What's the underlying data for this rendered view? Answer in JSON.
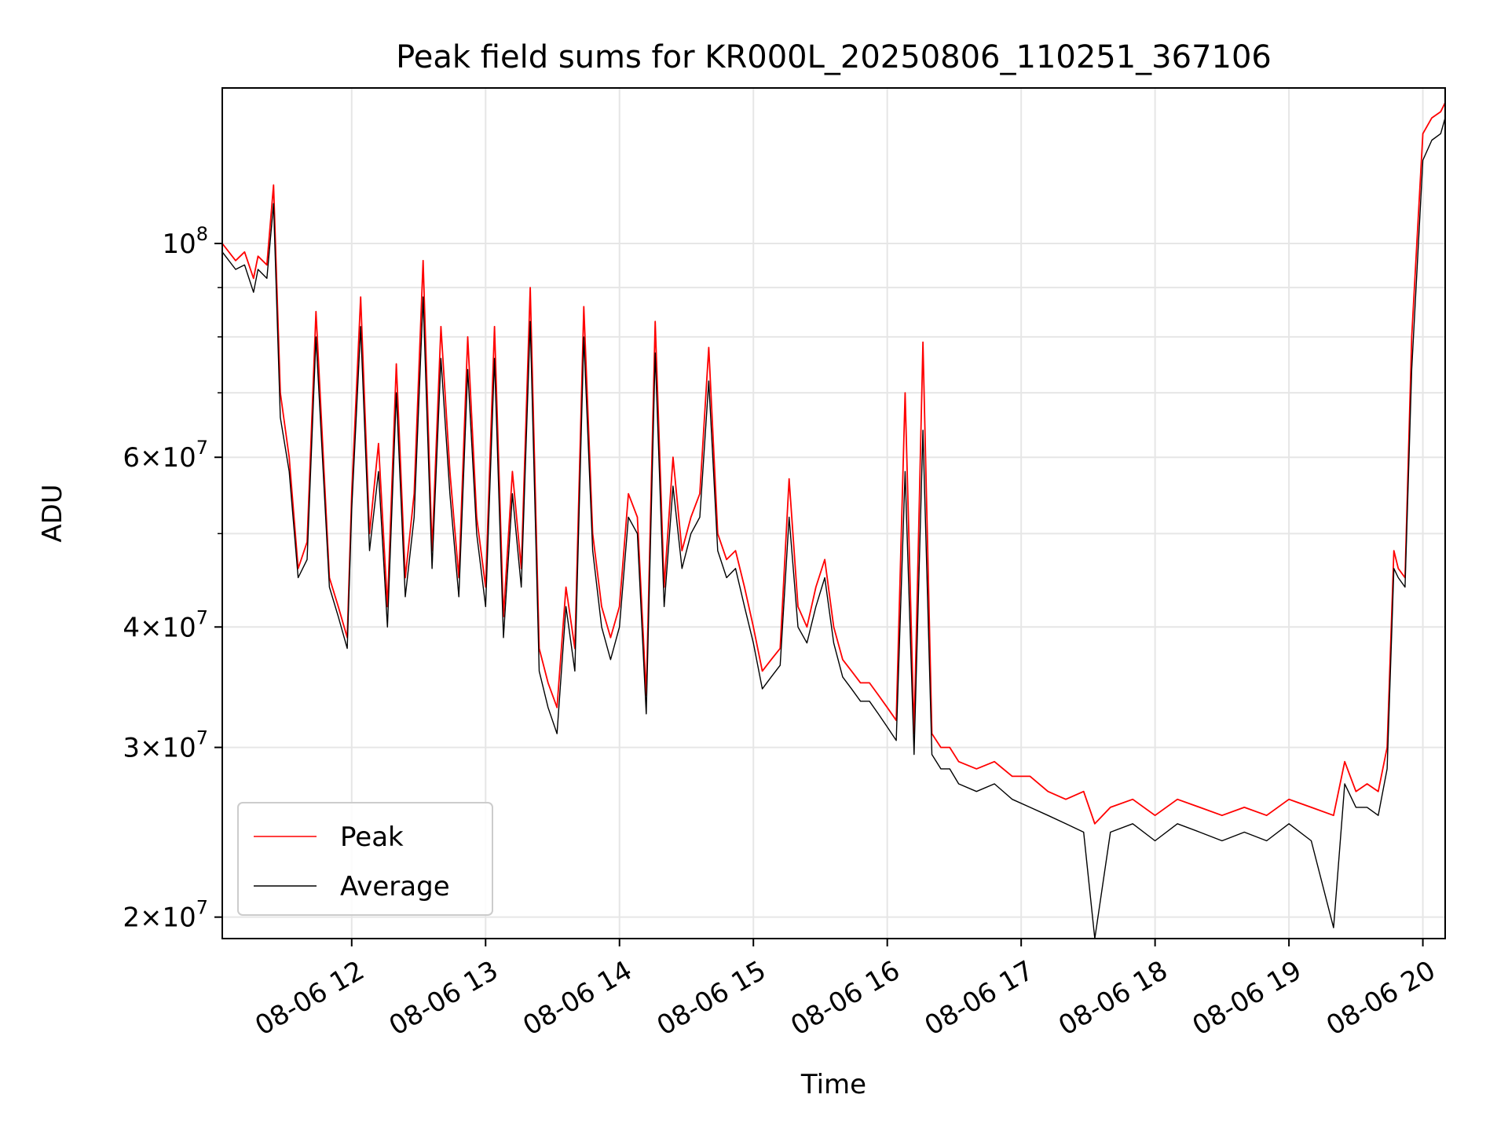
{
  "chart_data": {
    "type": "line",
    "title": "Peak field sums for KR000L_20250806_110251_367106",
    "xlabel": "Time",
    "ylabel": "ADU",
    "y_scale": "log",
    "ylim": [
      19000000,
      145000000
    ],
    "xlim": [
      "08-06 11:02",
      "08-06 20:10"
    ],
    "grid": true,
    "legend_position": "lower-left",
    "x_ticks": [
      "08-06 12",
      "08-06 13",
      "08-06 14",
      "08-06 15",
      "08-06 16",
      "08-06 17",
      "08-06 18",
      "08-06 19",
      "08-06 20"
    ],
    "y_major_ticks": [
      {
        "value": 20000000,
        "mant": "2",
        "exp": "7"
      },
      {
        "value": 30000000,
        "mant": "3",
        "exp": "7"
      },
      {
        "value": 40000000,
        "mant": "4",
        "exp": "7"
      },
      {
        "value": 60000000,
        "mant": "6",
        "exp": "7"
      },
      {
        "value": 100000000,
        "mant": "",
        "exp": "8"
      }
    ],
    "series": [
      {
        "name": "Peak",
        "color": "#ff0000",
        "x": [
          "08-06 11:02",
          "08-06 11:08",
          "08-06 11:12",
          "08-06 11:16",
          "08-06 11:18",
          "08-06 11:22",
          "08-06 11:25",
          "08-06 11:28",
          "08-06 11:32",
          "08-06 11:36",
          "08-06 11:40",
          "08-06 11:44",
          "08-06 11:50",
          "08-06 11:54",
          "08-06 11:58",
          "08-06 12:00",
          "08-06 12:04",
          "08-06 12:08",
          "08-06 12:12",
          "08-06 12:16",
          "08-06 12:20",
          "08-06 12:24",
          "08-06 12:28",
          "08-06 12:32",
          "08-06 12:36",
          "08-06 12:40",
          "08-06 12:44",
          "08-06 12:48",
          "08-06 12:52",
          "08-06 12:56",
          "08-06 13:00",
          "08-06 13:04",
          "08-06 13:08",
          "08-06 13:12",
          "08-06 13:16",
          "08-06 13:20",
          "08-06 13:24",
          "08-06 13:28",
          "08-06 13:32",
          "08-06 13:36",
          "08-06 13:40",
          "08-06 13:44",
          "08-06 13:48",
          "08-06 13:52",
          "08-06 13:56",
          "08-06 14:00",
          "08-06 14:04",
          "08-06 14:08",
          "08-06 14:12",
          "08-06 14:16",
          "08-06 14:20",
          "08-06 14:24",
          "08-06 14:28",
          "08-06 14:32",
          "08-06 14:36",
          "08-06 14:40",
          "08-06 14:44",
          "08-06 14:48",
          "08-06 14:52",
          "08-06 14:56",
          "08-06 15:00",
          "08-06 15:04",
          "08-06 15:08",
          "08-06 15:12",
          "08-06 15:16",
          "08-06 15:20",
          "08-06 15:24",
          "08-06 15:28",
          "08-06 15:32",
          "08-06 15:36",
          "08-06 15:40",
          "08-06 15:44",
          "08-06 15:48",
          "08-06 15:52",
          "08-06 15:56",
          "08-06 16:00",
          "08-06 16:04",
          "08-06 16:08",
          "08-06 16:12",
          "08-06 16:16",
          "08-06 16:20",
          "08-06 16:24",
          "08-06 16:28",
          "08-06 16:32",
          "08-06 16:40",
          "08-06 16:48",
          "08-06 16:56",
          "08-06 17:04",
          "08-06 17:12",
          "08-06 17:20",
          "08-06 17:28",
          "08-06 17:33",
          "08-06 17:40",
          "08-06 17:50",
          "08-06 18:00",
          "08-06 18:10",
          "08-06 18:20",
          "08-06 18:30",
          "08-06 18:40",
          "08-06 18:50",
          "08-06 19:00",
          "08-06 19:10",
          "08-06 19:20",
          "08-06 19:25",
          "08-06 19:30",
          "08-06 19:35",
          "08-06 19:40",
          "08-06 19:44",
          "08-06 19:47",
          "08-06 19:49",
          "08-06 19:52",
          "08-06 19:55",
          "08-06 20:00",
          "08-06 20:04",
          "08-06 20:08",
          "08-06 20:10"
        ],
        "y": [
          100000000,
          96000000,
          98000000,
          92000000,
          97000000,
          95000000,
          115000000,
          70000000,
          60000000,
          46000000,
          49000000,
          85000000,
          45000000,
          42000000,
          39000000,
          55000000,
          88000000,
          50000000,
          62000000,
          42000000,
          75000000,
          45000000,
          55000000,
          96000000,
          48000000,
          82000000,
          58000000,
          45000000,
          80000000,
          52000000,
          44000000,
          82000000,
          41000000,
          58000000,
          46000000,
          90000000,
          38000000,
          35000000,
          33000000,
          44000000,
          38000000,
          86000000,
          50000000,
          42000000,
          39000000,
          42000000,
          55000000,
          52000000,
          34000000,
          83000000,
          44000000,
          60000000,
          48000000,
          52000000,
          55000000,
          78000000,
          50000000,
          47000000,
          48000000,
          44000000,
          40000000,
          36000000,
          37000000,
          38000000,
          57000000,
          42000000,
          40000000,
          44000000,
          47000000,
          40000000,
          37000000,
          36000000,
          35000000,
          35000000,
          34000000,
          33000000,
          32000000,
          70000000,
          31000000,
          79000000,
          31000000,
          30000000,
          30000000,
          29000000,
          28500000,
          29000000,
          28000000,
          28000000,
          27000000,
          26500000,
          27000000,
          25000000,
          26000000,
          26500000,
          25500000,
          26500000,
          26000000,
          25500000,
          26000000,
          25500000,
          26500000,
          26000000,
          25500000,
          29000000,
          27000000,
          27500000,
          27000000,
          30000000,
          48000000,
          46000000,
          45000000,
          80000000,
          130000000,
          135000000,
          137000000,
          140000000
        ]
      },
      {
        "name": "Average",
        "color": "#000000",
        "x": [
          "08-06 11:02",
          "08-06 11:08",
          "08-06 11:12",
          "08-06 11:16",
          "08-06 11:18",
          "08-06 11:22",
          "08-06 11:25",
          "08-06 11:28",
          "08-06 11:32",
          "08-06 11:36",
          "08-06 11:40",
          "08-06 11:44",
          "08-06 11:50",
          "08-06 11:54",
          "08-06 11:58",
          "08-06 12:00",
          "08-06 12:04",
          "08-06 12:08",
          "08-06 12:12",
          "08-06 12:16",
          "08-06 12:20",
          "08-06 12:24",
          "08-06 12:28",
          "08-06 12:32",
          "08-06 12:36",
          "08-06 12:40",
          "08-06 12:44",
          "08-06 12:48",
          "08-06 12:52",
          "08-06 12:56",
          "08-06 13:00",
          "08-06 13:04",
          "08-06 13:08",
          "08-06 13:12",
          "08-06 13:16",
          "08-06 13:20",
          "08-06 13:24",
          "08-06 13:28",
          "08-06 13:32",
          "08-06 13:36",
          "08-06 13:40",
          "08-06 13:44",
          "08-06 13:48",
          "08-06 13:52",
          "08-06 13:56",
          "08-06 14:00",
          "08-06 14:04",
          "08-06 14:08",
          "08-06 14:12",
          "08-06 14:16",
          "08-06 14:20",
          "08-06 14:24",
          "08-06 14:28",
          "08-06 14:32",
          "08-06 14:36",
          "08-06 14:40",
          "08-06 14:44",
          "08-06 14:48",
          "08-06 14:52",
          "08-06 14:56",
          "08-06 15:00",
          "08-06 15:04",
          "08-06 15:08",
          "08-06 15:12",
          "08-06 15:16",
          "08-06 15:20",
          "08-06 15:24",
          "08-06 15:28",
          "08-06 15:32",
          "08-06 15:36",
          "08-06 15:40",
          "08-06 15:44",
          "08-06 15:48",
          "08-06 15:52",
          "08-06 15:56",
          "08-06 16:00",
          "08-06 16:04",
          "08-06 16:08",
          "08-06 16:12",
          "08-06 16:16",
          "08-06 16:20",
          "08-06 16:24",
          "08-06 16:28",
          "08-06 16:32",
          "08-06 16:40",
          "08-06 16:48",
          "08-06 16:56",
          "08-06 17:04",
          "08-06 17:12",
          "08-06 17:20",
          "08-06 17:28",
          "08-06 17:33",
          "08-06 17:40",
          "08-06 17:50",
          "08-06 18:00",
          "08-06 18:10",
          "08-06 18:20",
          "08-06 18:30",
          "08-06 18:40",
          "08-06 18:50",
          "08-06 19:00",
          "08-06 19:10",
          "08-06 19:20",
          "08-06 19:25",
          "08-06 19:30",
          "08-06 19:35",
          "08-06 19:40",
          "08-06 19:44",
          "08-06 19:47",
          "08-06 19:49",
          "08-06 19:52",
          "08-06 19:55",
          "08-06 20:00",
          "08-06 20:04",
          "08-06 20:08",
          "08-06 20:10"
        ],
        "y": [
          98000000,
          94000000,
          95000000,
          89000000,
          94000000,
          92000000,
          110000000,
          66000000,
          58000000,
          45000000,
          47000000,
          80000000,
          44000000,
          41000000,
          38000000,
          53000000,
          82000000,
          48000000,
          58000000,
          40000000,
          70000000,
          43000000,
          52000000,
          88000000,
          46000000,
          76000000,
          55000000,
          43000000,
          74000000,
          50000000,
          42000000,
          76000000,
          39000000,
          55000000,
          44000000,
          83000000,
          36000000,
          33000000,
          31000000,
          42000000,
          36000000,
          80000000,
          48000000,
          40000000,
          37000000,
          40000000,
          52000000,
          50000000,
          32500000,
          77000000,
          42000000,
          56000000,
          46000000,
          50000000,
          52000000,
          72000000,
          48000000,
          45000000,
          46000000,
          42000000,
          38500000,
          34500000,
          35500000,
          36500000,
          52000000,
          40000000,
          38500000,
          42000000,
          45000000,
          38500000,
          35500000,
          34500000,
          33500000,
          33500000,
          32500000,
          31500000,
          30500000,
          58000000,
          29500000,
          64000000,
          29500000,
          28500000,
          28500000,
          27500000,
          27000000,
          27500000,
          26500000,
          26000000,
          25500000,
          25000000,
          24500000,
          19000000,
          24500000,
          25000000,
          24000000,
          25000000,
          24500000,
          24000000,
          24500000,
          24000000,
          25000000,
          24000000,
          19500000,
          27500000,
          26000000,
          26000000,
          25500000,
          28500000,
          46000000,
          45000000,
          44000000,
          74000000,
          122000000,
          128000000,
          130000000,
          135000000
        ]
      }
    ]
  }
}
